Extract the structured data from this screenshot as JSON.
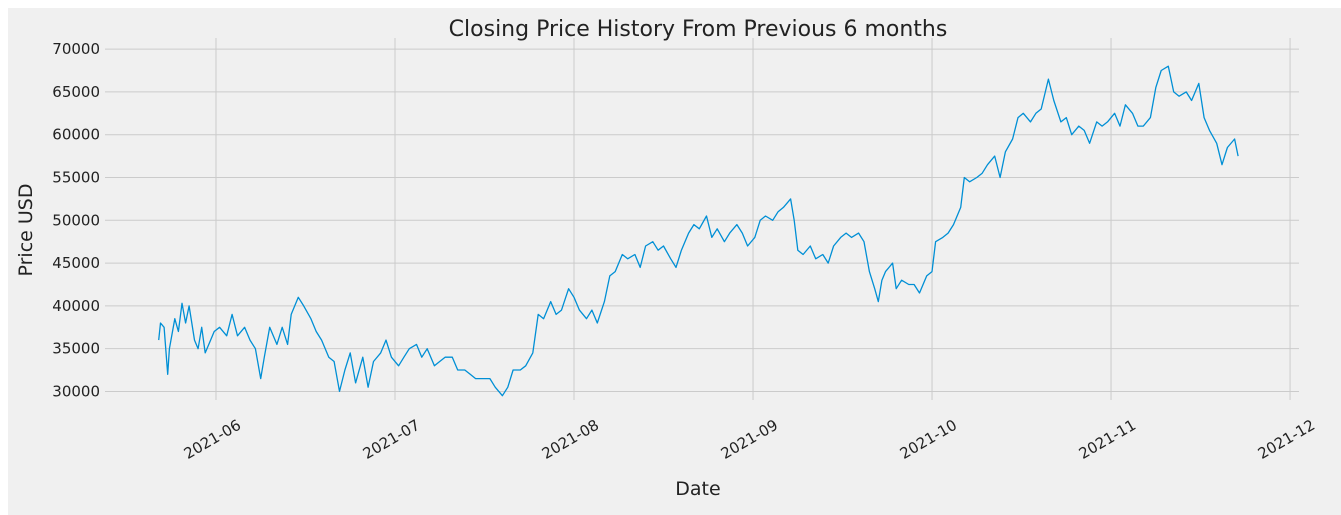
{
  "chart_data": {
    "type": "line",
    "title": "Closing Price History From Previous 6 months",
    "x_label": "Date",
    "y_label": "Price USD",
    "color": "#008fd5",
    "grid": true,
    "xlim": [
      5.38,
      12.05
    ],
    "ylim": [
      29000,
      71300
    ],
    "xticks": [
      {
        "value": 6,
        "label": "2021-06"
      },
      {
        "value": 7,
        "label": "2021-07"
      },
      {
        "value": 8,
        "label": "2021-08"
      },
      {
        "value": 9,
        "label": "2021-09"
      },
      {
        "value": 10,
        "label": "2021-10"
      },
      {
        "value": 11,
        "label": "2021-11"
      },
      {
        "value": 12,
        "label": "2021-12"
      }
    ],
    "yticks": [
      30000,
      35000,
      40000,
      45000,
      50000,
      55000,
      60000,
      65000,
      70000
    ],
    "x": [
      5.68,
      5.69,
      5.71,
      5.73,
      5.74,
      5.77,
      5.79,
      5.81,
      5.83,
      5.85,
      5.88,
      5.9,
      5.92,
      5.94,
      5.97,
      5.99,
      6.02,
      6.06,
      6.09,
      6.12,
      6.16,
      6.19,
      6.22,
      6.25,
      6.27,
      6.3,
      6.34,
      6.37,
      6.4,
      6.42,
      6.46,
      6.49,
      6.53,
      6.56,
      6.59,
      6.63,
      6.66,
      6.69,
      6.72,
      6.75,
      6.78,
      6.82,
      6.85,
      6.88,
      6.92,
      6.95,
      6.98,
      7.02,
      7.05,
      7.08,
      7.12,
      7.15,
      7.18,
      7.22,
      7.25,
      7.28,
      7.32,
      7.35,
      7.39,
      7.42,
      7.45,
      7.49,
      7.53,
      7.56,
      7.6,
      7.63,
      7.66,
      7.7,
      7.73,
      7.77,
      7.8,
      7.83,
      7.87,
      7.9,
      7.93,
      7.97,
      8.0,
      8.03,
      8.07,
      8.1,
      8.13,
      8.17,
      8.2,
      8.23,
      8.27,
      8.3,
      8.34,
      8.37,
      8.4,
      8.44,
      8.47,
      8.5,
      8.54,
      8.57,
      8.6,
      8.64,
      8.67,
      8.7,
      8.74,
      8.77,
      8.8,
      8.84,
      8.87,
      8.91,
      8.94,
      8.97,
      9.01,
      9.04,
      9.07,
      9.11,
      9.14,
      9.17,
      9.21,
      9.23,
      9.25,
      9.28,
      9.32,
      9.35,
      9.39,
      9.42,
      9.45,
      9.49,
      9.52,
      9.55,
      9.59,
      9.62,
      9.65,
      9.68,
      9.7,
      9.72,
      9.74,
      9.78,
      9.8,
      9.83,
      9.87,
      9.9,
      9.93,
      9.97,
      10.0,
      10.02,
      10.06,
      10.09,
      10.12,
      10.16,
      10.18,
      10.21,
      10.25,
      10.28,
      10.31,
      10.35,
      10.38,
      10.41,
      10.45,
      10.48,
      10.51,
      10.55,
      10.58,
      10.61,
      10.65,
      10.68,
      10.72,
      10.75,
      10.78,
      10.82,
      10.85,
      10.88,
      10.92,
      10.95,
      10.98,
      11.02,
      11.05,
      11.08,
      11.12,
      11.15,
      11.18,
      11.22,
      11.25,
      11.28,
      11.32,
      11.35,
      11.38,
      11.42,
      11.45,
      11.49,
      11.52,
      11.55,
      11.59,
      11.62,
      11.65,
      11.69,
      11.71
    ],
    "values": [
      36000,
      38000,
      37500,
      32000,
      35000,
      38500,
      37000,
      40300,
      38000,
      40000,
      36000,
      35000,
      37500,
      34500,
      36000,
      37000,
      37500,
      36500,
      39000,
      36500,
      37500,
      36000,
      35000,
      31500,
      34000,
      37500,
      35500,
      37500,
      35500,
      39000,
      41000,
      40000,
      38500,
      37000,
      36000,
      34000,
      33500,
      30000,
      32500,
      34500,
      31000,
      34000,
      30500,
      33500,
      34500,
      36000,
      34000,
      33000,
      34000,
      35000,
      35500,
      34000,
      35000,
      33000,
      33500,
      34000,
      34000,
      32500,
      32500,
      32000,
      31500,
      31500,
      31500,
      30500,
      29500,
      30500,
      32500,
      32500,
      33000,
      34500,
      39000,
      38500,
      40500,
      39000,
      39500,
      42000,
      41000,
      39500,
      38500,
      39500,
      38000,
      40500,
      43500,
      44000,
      46000,
      45500,
      46000,
      44500,
      47000,
      47500,
      46500,
      47000,
      45500,
      44500,
      46500,
      48500,
      49500,
      49000,
      50500,
      48000,
      49000,
      47500,
      48500,
      49500,
      48500,
      47000,
      48000,
      50000,
      50500,
      50000,
      51000,
      51500,
      52500,
      50000,
      46500,
      46000,
      47000,
      45500,
      46000,
      45000,
      47000,
      48000,
      48500,
      48000,
      48500,
      47500,
      44000,
      42000,
      40500,
      43000,
      44000,
      45000,
      42000,
      43000,
      42500,
      42500,
      41500,
      43500,
      44000,
      47500,
      48000,
      48500,
      49500,
      51500,
      55000,
      54500,
      55000,
      55500,
      56500,
      57500,
      55000,
      58000,
      59500,
      62000,
      62500,
      61500,
      62500,
      63000,
      66500,
      64000,
      61500,
      62000,
      60000,
      61000,
      60500,
      59000,
      61500,
      61000,
      61500,
      62500,
      61000,
      63500,
      62500,
      61000,
      61000,
      62000,
      65500,
      67500,
      68000,
      65000,
      64500,
      65000,
      64000,
      66000,
      62000,
      60500,
      59000,
      56500,
      58500,
      59500,
      57500
    ]
  }
}
